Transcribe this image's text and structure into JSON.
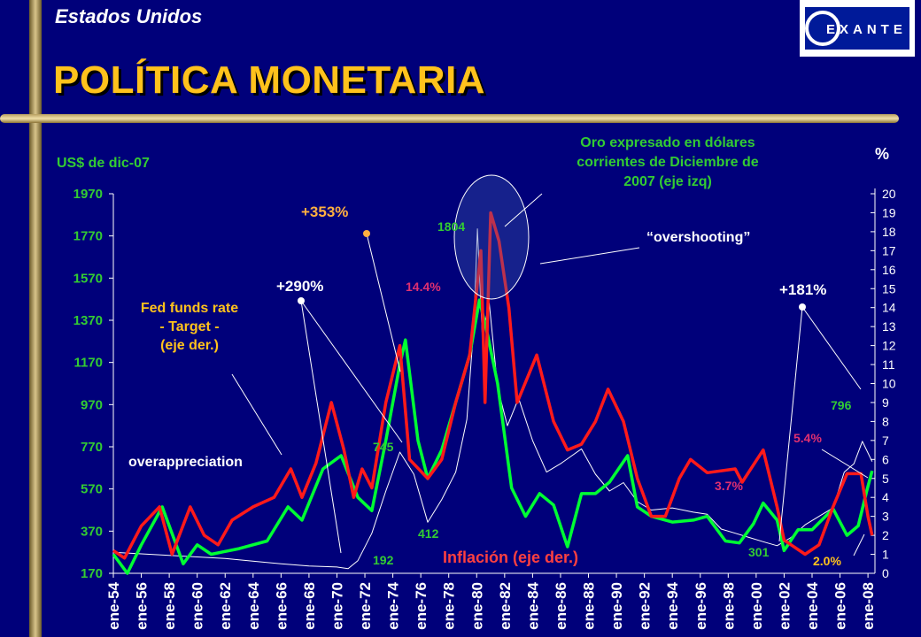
{
  "header": {
    "country": "Estados Unidos",
    "title": "POLÍTICA MONETARIA",
    "logo_text": "EXANTE"
  },
  "colors": {
    "background": "#00007a",
    "gold": "#ffffff",
    "fed_funds": "#ff1a1a",
    "inflation": "#00ff33",
    "title": "#ffc21c",
    "label_green": "#33cc33",
    "label_pink": "#e03070",
    "label_orange": "#ffb040"
  },
  "annotations": {
    "left_unit": "US$ de dic-07",
    "right_unit": "%",
    "fed_label_1": "Fed funds rate",
    "fed_label_2": "- Target -",
    "fed_label_3": "(eje der.)",
    "gold_title_1": "Oro expresado en  dólares",
    "gold_title_2": "corrientes de Diciembre de",
    "gold_title_3": "2007  (eje izq)",
    "overshooting": "“overshooting”",
    "overappreciation": "overappreciation",
    "inflacion": "Inflación (eje der.)",
    "pct353": "+353%",
    "pct290": "+290%",
    "pct181": "+181%",
    "peak1804": "1804",
    "v745": "745",
    "v412": "412",
    "v192": "192",
    "v301": "301",
    "v796": "796",
    "r14_4": "14.4%",
    "r3_7": "3.7%",
    "r5_4": "5.4%",
    "r2_0": "2.0%"
  },
  "chart_data": {
    "type": "line",
    "left_axis": {
      "label": "US$ de dic-07",
      "ticks": [
        170,
        370,
        570,
        770,
        970,
        1170,
        1370,
        1570,
        1770,
        1970
      ],
      "range": [
        170,
        1970
      ]
    },
    "right_axis": {
      "label": "%",
      "ticks": [
        0,
        1,
        2,
        3,
        4,
        5,
        6,
        7,
        8,
        9,
        10,
        11,
        12,
        13,
        14,
        15,
        16,
        17,
        18,
        19,
        20
      ],
      "range": [
        0,
        20
      ]
    },
    "x_ticks": [
      "ene-54",
      "ene-56",
      "ene-58",
      "ene-60",
      "ene-62",
      "ene-64",
      "ene-66",
      "ene-68",
      "ene-70",
      "ene-72",
      "ene-74",
      "ene-76",
      "ene-78",
      "ene-80",
      "ene-82",
      "ene-84",
      "ene-86",
      "ene-88",
      "ene-90",
      "ene-92",
      "ene-94",
      "ene-96",
      "ene-98",
      "ene-00",
      "ene-02",
      "ene-04",
      "ene-06",
      "ene-08"
    ],
    "series": [
      {
        "name": "Oro expresado en dólares corrientes de Diciembre de 2007 (eje izq)",
        "axis": "left",
        "points": [
          [
            1954.0,
            270
          ],
          [
            1958,
            255
          ],
          [
            1962,
            240
          ],
          [
            1966,
            215
          ],
          [
            1968,
            205
          ],
          [
            1970,
            200
          ],
          [
            1970.8,
            192
          ],
          [
            1971.5,
            230
          ],
          [
            1972.5,
            360
          ],
          [
            1973.5,
            560
          ],
          [
            1974.5,
            745
          ],
          [
            1975.5,
            640
          ],
          [
            1976.5,
            412
          ],
          [
            1977.5,
            520
          ],
          [
            1978.5,
            650
          ],
          [
            1979.3,
            900
          ],
          [
            1979.8,
            1350
          ],
          [
            1980.05,
            1804
          ],
          [
            1980.4,
            1300
          ],
          [
            1980.9,
            1450
          ],
          [
            1981.5,
            1050
          ],
          [
            1982.2,
            870
          ],
          [
            1983,
            1000
          ],
          [
            1984,
            800
          ],
          [
            1985,
            650
          ],
          [
            1986,
            690
          ],
          [
            1987.5,
            760
          ],
          [
            1988.5,
            640
          ],
          [
            1989.5,
            560
          ],
          [
            1990.5,
            600
          ],
          [
            1991.5,
            510
          ],
          [
            1992.5,
            470
          ],
          [
            1994,
            480
          ],
          [
            1995.5,
            460
          ],
          [
            1996.5,
            450
          ],
          [
            1997.5,
            380
          ],
          [
            1998.5,
            360
          ],
          [
            1999.5,
            340
          ],
          [
            2000.5,
            320
          ],
          [
            2001.5,
            301
          ],
          [
            2002.5,
            340
          ],
          [
            2003.5,
            400
          ],
          [
            2004.5,
            440
          ],
          [
            2005.5,
            480
          ],
          [
            2006.3,
            650
          ],
          [
            2007,
            690
          ],
          [
            2007.6,
            796
          ],
          [
            2008.3,
            700
          ]
        ]
      },
      {
        "name": "Fed funds rate - Target - (eje der.)",
        "axis": "right",
        "points": [
          [
            1954.0,
            1.2
          ],
          [
            1954.8,
            0.8
          ],
          [
            1956,
            2.5
          ],
          [
            1957.3,
            3.5
          ],
          [
            1958.2,
            1.0
          ],
          [
            1959.5,
            3.5
          ],
          [
            1960.5,
            2.0
          ],
          [
            1961.5,
            1.5
          ],
          [
            1962.5,
            2.8
          ],
          [
            1964,
            3.5
          ],
          [
            1965.5,
            4.0
          ],
          [
            1966.7,
            5.5
          ],
          [
            1967.5,
            4.0
          ],
          [
            1968.5,
            5.8
          ],
          [
            1969.6,
            9.0
          ],
          [
            1970.5,
            6.5
          ],
          [
            1971.2,
            4.0
          ],
          [
            1971.8,
            5.5
          ],
          [
            1972.5,
            4.5
          ],
          [
            1973.5,
            9.0
          ],
          [
            1974.5,
            12.0
          ],
          [
            1975.2,
            6.0
          ],
          [
            1976.5,
            5.0
          ],
          [
            1977.5,
            6.0
          ],
          [
            1978.5,
            9.0
          ],
          [
            1979.5,
            11.5
          ],
          [
            1980.3,
            17.0
          ],
          [
            1980.6,
            9.0
          ],
          [
            1981.0,
            19.0
          ],
          [
            1981.6,
            17.5
          ],
          [
            1982.3,
            14.0
          ],
          [
            1982.9,
            9.0
          ],
          [
            1984.3,
            11.5
          ],
          [
            1985.5,
            8.0
          ],
          [
            1986.5,
            6.5
          ],
          [
            1987.5,
            6.8
          ],
          [
            1988.5,
            8.0
          ],
          [
            1989.4,
            9.7
          ],
          [
            1990.5,
            8.0
          ],
          [
            1991.5,
            5.0
          ],
          [
            1992.5,
            3.0
          ],
          [
            1993.5,
            3.0
          ],
          [
            1994.5,
            5.0
          ],
          [
            1995.3,
            6.0
          ],
          [
            1996.5,
            5.3
          ],
          [
            1998.5,
            5.5
          ],
          [
            1999.0,
            4.8
          ],
          [
            2000.5,
            6.5
          ],
          [
            2001.5,
            3.5
          ],
          [
            2002.0,
            1.75
          ],
          [
            2003.5,
            1.0
          ],
          [
            2004.5,
            1.5
          ],
          [
            2005.5,
            3.5
          ],
          [
            2006.5,
            5.25
          ],
          [
            2007.5,
            5.25
          ],
          [
            2008.0,
            3.0
          ],
          [
            2008.3,
            2.0
          ]
        ]
      },
      {
        "name": "Inflación (eje der.)",
        "axis": "right",
        "points": [
          [
            1954.0,
            1.0
          ],
          [
            1955,
            0.0
          ],
          [
            1956,
            1.5
          ],
          [
            1957.5,
            3.5
          ],
          [
            1959,
            0.5
          ],
          [
            1960,
            1.5
          ],
          [
            1961,
            1.0
          ],
          [
            1963,
            1.3
          ],
          [
            1965,
            1.7
          ],
          [
            1966.5,
            3.5
          ],
          [
            1967.5,
            2.8
          ],
          [
            1969,
            5.5
          ],
          [
            1970.3,
            6.2
          ],
          [
            1971.5,
            4.0
          ],
          [
            1972.5,
            3.3
          ],
          [
            1973.5,
            7.0
          ],
          [
            1974.5,
            11.0
          ],
          [
            1974.9,
            12.3
          ],
          [
            1975.8,
            7.0
          ],
          [
            1976.5,
            5.0
          ],
          [
            1977.5,
            6.5
          ],
          [
            1978.5,
            9.0
          ],
          [
            1979.5,
            11.5
          ],
          [
            1980.2,
            14.4
          ],
          [
            1980.8,
            12.5
          ],
          [
            1981.5,
            10.0
          ],
          [
            1982.5,
            4.5
          ],
          [
            1983.5,
            3.0
          ],
          [
            1984.5,
            4.2
          ],
          [
            1985.5,
            3.6
          ],
          [
            1986.5,
            1.4
          ],
          [
            1987.5,
            4.2
          ],
          [
            1988.5,
            4.2
          ],
          [
            1989.5,
            4.8
          ],
          [
            1990.8,
            6.2
          ],
          [
            1991.5,
            3.5
          ],
          [
            1992.5,
            3.0
          ],
          [
            1994,
            2.7
          ],
          [
            1995.5,
            2.8
          ],
          [
            1996.5,
            3.0
          ],
          [
            1997.8,
            1.7
          ],
          [
            1998.8,
            1.6
          ],
          [
            1999.8,
            2.6
          ],
          [
            2000.5,
            3.7
          ],
          [
            2001.5,
            2.8
          ],
          [
            2002,
            1.2
          ],
          [
            2003,
            2.3
          ],
          [
            2004,
            2.3
          ],
          [
            2005.5,
            3.4
          ],
          [
            2006.5,
            2.0
          ],
          [
            2007.3,
            2.5
          ],
          [
            2007.9,
            4.3
          ],
          [
            2008.3,
            5.4
          ]
        ]
      }
    ]
  }
}
